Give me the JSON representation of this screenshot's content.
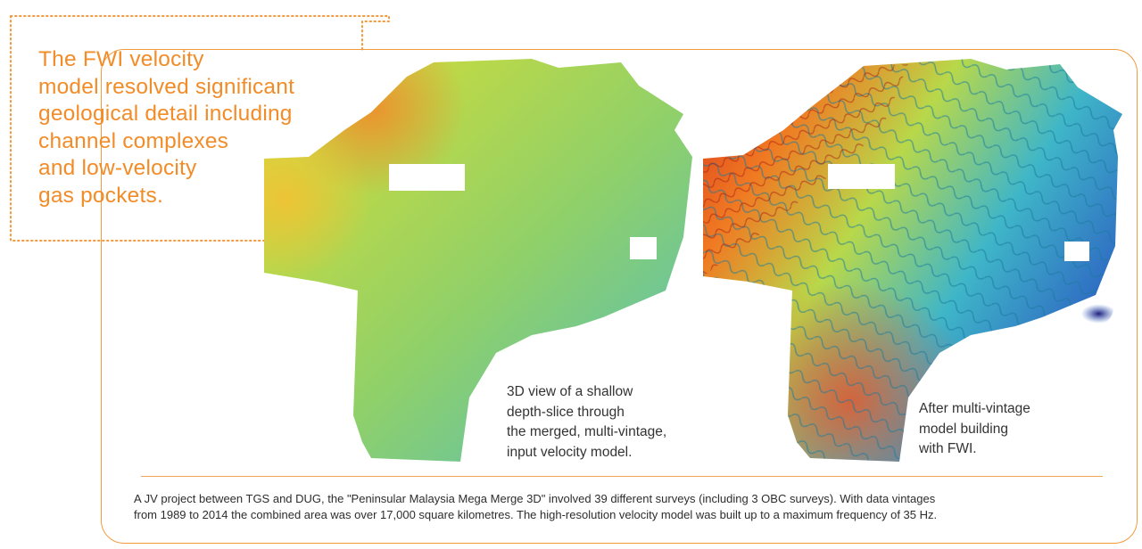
{
  "callout": {
    "lines": [
      "The FWI velocity",
      "model resolved significant",
      "geological detail including",
      "channel complexes",
      "and low-velocity",
      "gas pockets."
    ]
  },
  "images": {
    "left": {
      "caption_lines": [
        "3D view of a shallow",
        "depth-slice through",
        "the merged, multi-vintage,",
        "input velocity model."
      ]
    },
    "right": {
      "caption_lines": [
        "After multi-vintage",
        "model building",
        "with FWI."
      ]
    }
  },
  "footnote": {
    "lines": [
      "A JV project between TGS and DUG, the \"Peninsular Malaysia Mega Merge 3D\" involved 39 different surveys (including 3 OBC surveys). With data vintages",
      "from 1989 to 2014 the combined area was over 17,000 square kilometres. The high-resolution velocity model was built up to a maximum frequency of 35 Hz."
    ]
  },
  "colors": {
    "accent": "#f28c28",
    "frame": "#f39a3d",
    "text": "#333333"
  }
}
